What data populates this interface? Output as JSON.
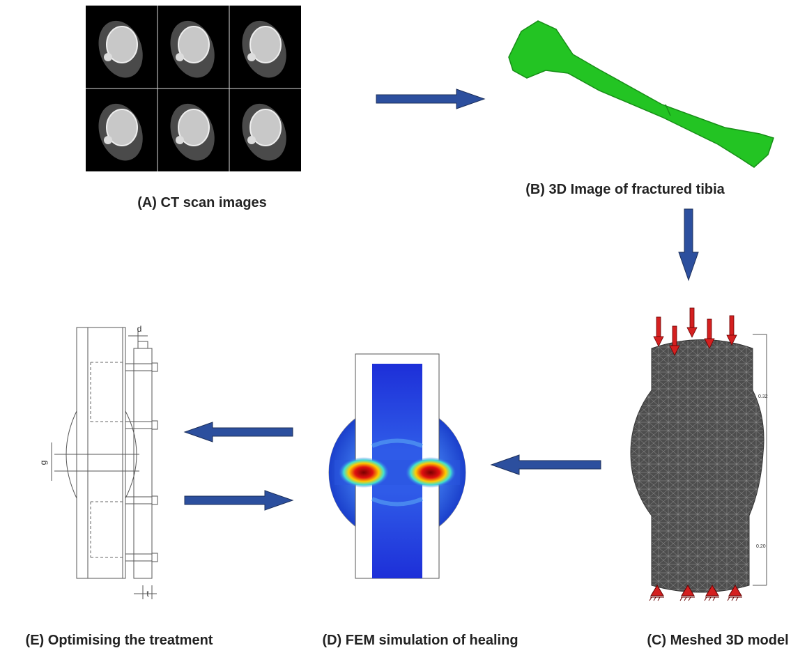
{
  "panels": [
    {
      "label": "(A) CT scan images"
    },
    {
      "label": "(B) 3D Image of fractured tibia"
    },
    {
      "label": "(C) Meshed 3D model"
    },
    {
      "label": "(D) FEM simulation of healing"
    },
    {
      "label": "(E) Optimising the treatment"
    }
  ],
  "annotations": {
    "d": "d",
    "g": "g",
    "t": "t",
    "mesh_top": "0.32",
    "mesh_bottom": "0.20"
  }
}
